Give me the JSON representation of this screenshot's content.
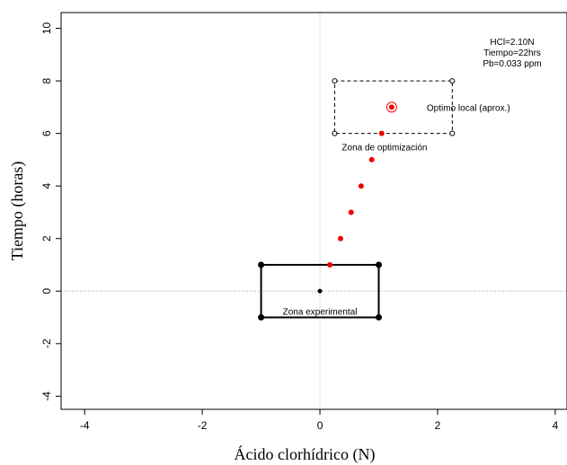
{
  "chart_data": {
    "type": "scatter",
    "xlabel": "Ácido clorhídrico (N)",
    "ylabel": "Tiempo (horas)",
    "xlim": [
      -4.4,
      4.2
    ],
    "ylim": [
      -4.5,
      10.6
    ],
    "x_ticks": [
      -4,
      -2,
      0,
      2,
      4
    ],
    "y_ticks": [
      -4,
      -2,
      0,
      2,
      4,
      6,
      8,
      10
    ],
    "x_tick_labels": [
      "-4",
      "-2",
      "0",
      "2",
      "4"
    ],
    "y_tick_labels": [
      "-4",
      "-2",
      "0",
      "2",
      "4",
      "6",
      "8",
      "10"
    ],
    "reference_lines": {
      "x": 0,
      "y": 0,
      "style": "dotted",
      "color": "#aaaaaa"
    },
    "zones": [
      {
        "name": "experimental",
        "label": "Zona experimental",
        "x": [
          -1,
          1
        ],
        "y": [
          -1,
          1
        ],
        "style": "solid",
        "corners": "filled"
      },
      {
        "name": "optimizacion",
        "label": "Zona de optimización",
        "x": [
          0.25,
          2.25
        ],
        "y": [
          6,
          8
        ],
        "style": "dashed",
        "corners": "open"
      }
    ],
    "center_point": {
      "x": 0,
      "y": 0,
      "color": "#000000"
    },
    "path_points": [
      {
        "x": 0.17,
        "y": 1
      },
      {
        "x": 0.35,
        "y": 2
      },
      {
        "x": 0.53,
        "y": 3
      },
      {
        "x": 0.7,
        "y": 4
      },
      {
        "x": 0.88,
        "y": 5
      },
      {
        "x": 1.05,
        "y": 6
      },
      {
        "x": 1.22,
        "y": 7
      }
    ],
    "path_color": "#ee0000",
    "optimum": {
      "x": 1.22,
      "y": 7,
      "label": "Optimo local (aprox.)"
    },
    "info_box": [
      "HCl=2.10N",
      "Tiempo=22hrs",
      "Pb=0.033 ppm"
    ],
    "grid": false
  }
}
